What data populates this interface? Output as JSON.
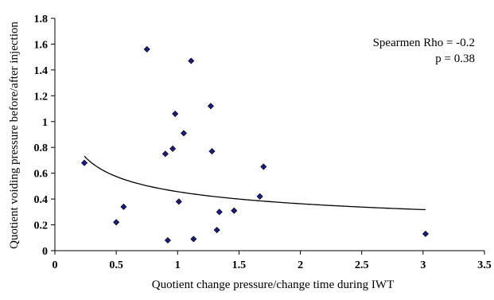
{
  "chart_data": {
    "type": "scatter",
    "title": "",
    "xlabel": "Quotient change pressure/change time during IWT",
    "ylabel": "Quotient voiding pressure before/after injection",
    "xlim": [
      0,
      3.5
    ],
    "ylim": [
      0,
      1.8
    ],
    "x_ticks": [
      "0",
      "0.5",
      "1",
      "1.5",
      "2",
      "2.5",
      "3",
      "3.5"
    ],
    "y_ticks": [
      "0",
      "0.2",
      "0.4",
      "0.6",
      "0.8",
      "1",
      "1.2",
      "1.4",
      "1.6",
      "1.8"
    ],
    "x_tick_values": [
      0,
      0.5,
      1,
      1.5,
      2,
      2.5,
      3,
      3.5
    ],
    "y_tick_values": [
      0,
      0.2,
      0.4,
      0.6,
      0.8,
      1,
      1.2,
      1.4,
      1.6,
      1.8
    ],
    "grid": false,
    "marker_color": "#1a1a80",
    "points": [
      {
        "x": 0.24,
        "y": 0.68
      },
      {
        "x": 0.5,
        "y": 0.22
      },
      {
        "x": 0.56,
        "y": 0.34
      },
      {
        "x": 0.75,
        "y": 1.56
      },
      {
        "x": 0.9,
        "y": 0.75
      },
      {
        "x": 0.92,
        "y": 0.08
      },
      {
        "x": 0.96,
        "y": 0.79
      },
      {
        "x": 0.98,
        "y": 1.06
      },
      {
        "x": 1.01,
        "y": 0.38
      },
      {
        "x": 1.05,
        "y": 0.91
      },
      {
        "x": 1.11,
        "y": 1.47
      },
      {
        "x": 1.13,
        "y": 0.09
      },
      {
        "x": 1.27,
        "y": 1.12
      },
      {
        "x": 1.28,
        "y": 0.77
      },
      {
        "x": 1.32,
        "y": 0.16
      },
      {
        "x": 1.34,
        "y": 0.3
      },
      {
        "x": 1.46,
        "y": 0.31
      },
      {
        "x": 1.67,
        "y": 0.42
      },
      {
        "x": 1.7,
        "y": 0.65
      },
      {
        "x": 3.02,
        "y": 0.13
      }
    ],
    "trendline": {
      "type": "power",
      "a": 0.457,
      "b": -0.33,
      "x_range": [
        0.24,
        3.02
      ],
      "color": "#000000"
    },
    "annotations": [
      "Spearmen Rho = -0.2",
      "p = 0.38"
    ]
  }
}
